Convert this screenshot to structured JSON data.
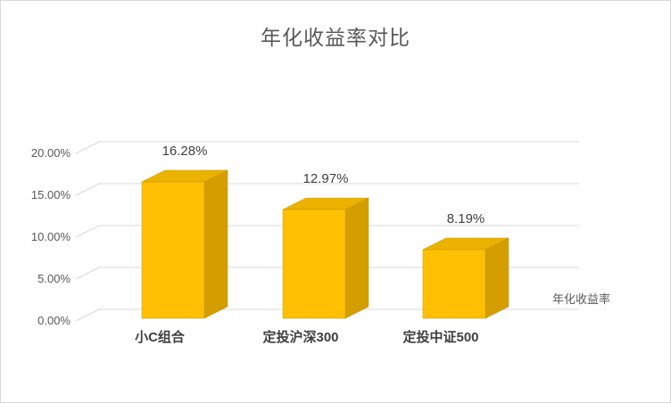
{
  "chart_data": {
    "type": "bar",
    "style": "3d-column",
    "title": "年化收益率对比",
    "categories": [
      "小C组合",
      "定投沪深300",
      "定投中证500"
    ],
    "values": [
      16.28,
      12.97,
      8.19
    ],
    "data_labels": [
      "16.28%",
      "12.97%",
      "8.19%"
    ],
    "series_label": "年化收益率",
    "yticks": [
      0,
      5,
      10,
      15,
      20
    ],
    "ytick_labels": [
      "0.00%",
      "5.00%",
      "10.00%",
      "15.00%",
      "20.00%"
    ],
    "ylim": [
      0,
      20
    ],
    "grid": true,
    "legend_position": "right-of-floor",
    "colors": {
      "bar_front": "#FFC004",
      "bar_top": "#EBB200",
      "bar_side": "#D49E00",
      "bar_edge": "#C89400",
      "grid": "#D9D9D9",
      "tick_text": "#595959",
      "label_text": "#3F3F3F",
      "background": "#FFFFFF",
      "border": "#D9D9D9"
    }
  }
}
